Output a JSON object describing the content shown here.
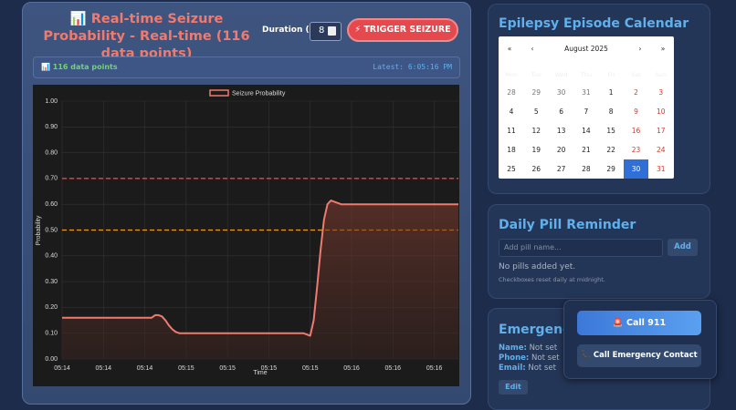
{
  "chart_panel": {
    "title": "📊 Real-time Seizure Probability - Real-time (116 data points)",
    "duration_label": "Duration (s):",
    "duration_value": "8",
    "trigger_button": "⚡ TRIGGER SEIZURE",
    "points_info": "📊 116 data points",
    "latest": "Latest: 6:05:16 PM"
  },
  "chart_data": {
    "type": "line",
    "xlabel": "Time",
    "ylabel": "Probability",
    "series": [
      {
        "name": "Seizure Probability",
        "color": "#f07a6e",
        "values": [
          0.16,
          0.16,
          0.16,
          0.16,
          0.16,
          0.16,
          0.16,
          0.16,
          0.16,
          0.16,
          0.16,
          0.16,
          0.16,
          0.16,
          0.16,
          0.16,
          0.16,
          0.16,
          0.16,
          0.16,
          0.16,
          0.16,
          0.16,
          0.16,
          0.16,
          0.16,
          0.16,
          0.17,
          0.17,
          0.165,
          0.15,
          0.13,
          0.115,
          0.105,
          0.1,
          0.1,
          0.1,
          0.1,
          0.1,
          0.1,
          0.1,
          0.1,
          0.1,
          0.1,
          0.1,
          0.1,
          0.1,
          0.1,
          0.1,
          0.1,
          0.1,
          0.1,
          0.1,
          0.1,
          0.1,
          0.1,
          0.1,
          0.1,
          0.1,
          0.1,
          0.1,
          0.1,
          0.1,
          0.1,
          0.1,
          0.1,
          0.1,
          0.1,
          0.1,
          0.1,
          0.1,
          0.095,
          0.09,
          0.15,
          0.28,
          0.42,
          0.54,
          0.6,
          0.615,
          0.61,
          0.605,
          0.6,
          0.6,
          0.6,
          0.6,
          0.6,
          0.6,
          0.6,
          0.6,
          0.6,
          0.6,
          0.6,
          0.6,
          0.6,
          0.6,
          0.6,
          0.6,
          0.6,
          0.6,
          0.6,
          0.6,
          0.6,
          0.6,
          0.6,
          0.6,
          0.6,
          0.6,
          0.6,
          0.6,
          0.6,
          0.6,
          0.6,
          0.6,
          0.6,
          0.6,
          0.6
        ]
      }
    ],
    "thresholds": [
      {
        "value": 0.7,
        "color": "#e8574c"
      },
      {
        "value": 0.5,
        "color": "#e89a2c"
      }
    ],
    "xlim": [
      0,
      115
    ],
    "ylim": [
      0,
      1
    ],
    "xticks": [
      {
        "value": 0,
        "label": "05:14"
      },
      {
        "value": 12,
        "label": "05:14"
      },
      {
        "value": 24,
        "label": "05:14"
      },
      {
        "value": 36,
        "label": "05:15"
      },
      {
        "value": 48,
        "label": "05:15"
      },
      {
        "value": 60,
        "label": "05:15"
      },
      {
        "value": 72,
        "label": "05:15"
      },
      {
        "value": 84,
        "label": "05:16"
      },
      {
        "value": 96,
        "label": "05:16"
      },
      {
        "value": 108,
        "label": "05:16"
      }
    ],
    "yticks": [
      {
        "value": 0,
        "label": "0.00"
      },
      {
        "value": 0.1,
        "label": "0.10"
      },
      {
        "value": 0.2,
        "label": "0.20"
      },
      {
        "value": 0.3,
        "label": "0.30"
      },
      {
        "value": 0.4,
        "label": "0.40"
      },
      {
        "value": 0.5,
        "label": "0.50"
      },
      {
        "value": 0.6,
        "label": "0.60"
      },
      {
        "value": 0.7,
        "label": "0.70"
      },
      {
        "value": 0.8,
        "label": "0.80"
      },
      {
        "value": 0.9,
        "label": "0.90"
      },
      {
        "value": 1,
        "label": "1.00"
      }
    ],
    "grid": true
  },
  "calendar": {
    "title": "Epilepsy Episode Calendar",
    "nav": [
      "«",
      "‹",
      "August 2025",
      "›",
      "»"
    ],
    "weekdays": [
      "Mon",
      "Tue",
      "Wed",
      "Thu",
      "Fri",
      "Sat",
      "Sun"
    ],
    "weeks": [
      [
        28,
        29,
        30,
        31,
        1,
        2,
        3
      ],
      [
        4,
        5,
        6,
        7,
        8,
        9,
        10
      ],
      [
        11,
        12,
        13,
        14,
        15,
        16,
        17
      ],
      [
        18,
        19,
        20,
        21,
        22,
        23,
        24
      ],
      [
        25,
        26,
        27,
        28,
        29,
        30,
        31
      ]
    ],
    "leading_other_month": 4,
    "selected_day": 30
  },
  "pills": {
    "title": "Daily Pill Reminder",
    "placeholder": "Add pill name...",
    "add_button": "Add",
    "empty": "No pills added yet.",
    "note": "Checkboxes reset daily at midnight."
  },
  "emergency": {
    "title": "Emergency",
    "fields": [
      [
        "Name:",
        "Not set"
      ],
      [
        "Phone:",
        "Not set"
      ],
      [
        "Email:",
        "Not set"
      ]
    ],
    "edit_button": "Edit"
  },
  "popup": {
    "call_911": "🚨 Call 911",
    "call_contact": "📞 Call Emergency Contact"
  }
}
